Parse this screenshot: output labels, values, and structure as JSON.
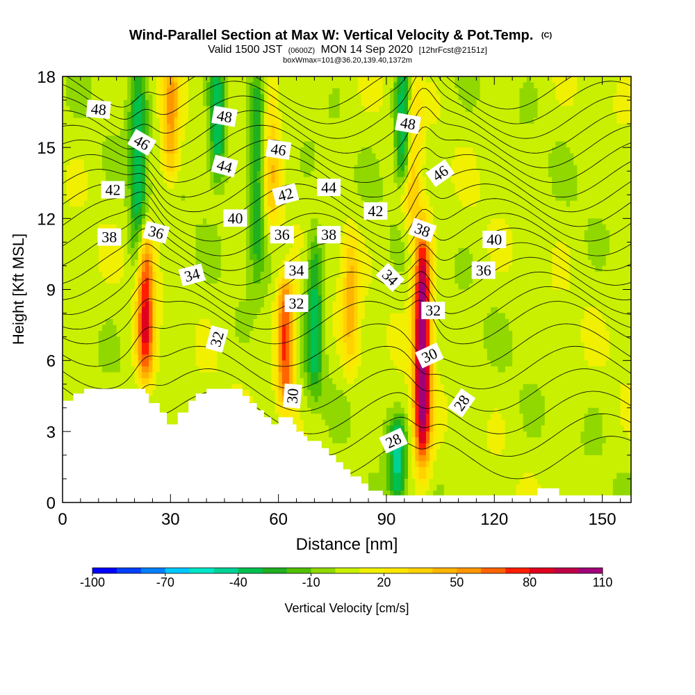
{
  "chart_data": {
    "type": "heatmap",
    "title": "Wind-Parallel Section at Max W: Vertical Velocity & Pot.Temp.",
    "title_badge": "(C)",
    "subtitle_main_a": "Valid 1500 JST",
    "subtitle_small_a": "(0600Z)",
    "subtitle_main_b": "MON 14 Sep 2020",
    "subtitle_small_b": "[12hrFcst@2151z]",
    "subtitle2": "boxWmax=101@36.20,139.40,1372m",
    "xlabel": "Distance [nm]",
    "ylabel": "Height [Kft MSL]",
    "xlim": [
      0,
      158
    ],
    "ylim": [
      0,
      18
    ],
    "xticks": [
      "0",
      "30",
      "60",
      "90",
      "120",
      "150"
    ],
    "yticks": [
      "0",
      "3",
      "6",
      "9",
      "12",
      "15",
      "18"
    ],
    "x_tick_values": [
      0,
      30,
      60,
      90,
      120,
      150
    ],
    "y_tick_values": [
      0,
      3,
      6,
      9,
      12,
      15,
      18
    ],
    "colorbar": {
      "label": "Vertical Velocity [cm/s]",
      "tick_labels": [
        "-100",
        "-70",
        "-40",
        "-10",
        "20",
        "50",
        "80",
        "110"
      ],
      "tick_values": [
        -100,
        -70,
        -40,
        -10,
        20,
        50,
        80,
        110
      ],
      "levels": [
        -100,
        -90,
        -80,
        -70,
        -60,
        -50,
        -40,
        -30,
        -20,
        -10,
        0,
        10,
        20,
        30,
        40,
        50,
        60,
        70,
        80,
        90,
        100,
        110
      ],
      "colors": [
        "#0000ff",
        "#0040ff",
        "#0080ff",
        "#00c8ff",
        "#00e6c8",
        "#00d296",
        "#00c050",
        "#20b020",
        "#50c000",
        "#90d800",
        "#c8f000",
        "#f0f000",
        "#ffe600",
        "#ffd200",
        "#ffb400",
        "#ff9600",
        "#ff6400",
        "#ff1e00",
        "#e0001e",
        "#c00046",
        "#a00078",
        "#7800a0"
      ]
    },
    "updrafts": [
      {
        "x": 23,
        "peak_cm_s": 75,
        "base_kft": 5.5,
        "top_kft": 11
      },
      {
        "x": 30,
        "peak_cm_s": 45,
        "base_kft": 14,
        "top_kft": 18
      },
      {
        "x": 62,
        "peak_cm_s": 70,
        "base_kft": 4.5,
        "top_kft": 9
      },
      {
        "x": 80,
        "peak_cm_s": 35,
        "base_kft": 6,
        "top_kft": 11
      },
      {
        "x": 100,
        "peak_cm_s": 110,
        "base_kft": 2,
        "top_kft": 11
      },
      {
        "x": 97,
        "peak_cm_s": 40,
        "base_kft": 12,
        "top_kft": 18
      },
      {
        "x": 58,
        "peak_cm_s": 30,
        "base_kft": 12,
        "top_kft": 18
      }
    ],
    "downdrafts": [
      {
        "x": 21,
        "min_cm_s": -40,
        "base_kft": 10,
        "top_kft": 18
      },
      {
        "x": 43,
        "min_cm_s": -45,
        "base_kft": 14,
        "top_kft": 18
      },
      {
        "x": 54,
        "min_cm_s": -35,
        "base_kft": 10,
        "top_kft": 18
      },
      {
        "x": 70,
        "min_cm_s": -40,
        "base_kft": 5,
        "top_kft": 11
      },
      {
        "x": 95,
        "min_cm_s": -60,
        "base_kft": 14,
        "top_kft": 18
      },
      {
        "x": 93,
        "min_cm_s": -45,
        "base_kft": 0.5,
        "top_kft": 3
      }
    ],
    "terrain_kft": [
      [
        0,
        4.3
      ],
      [
        3,
        4.3
      ],
      [
        3,
        4.6
      ],
      [
        6,
        4.6
      ],
      [
        6,
        4.8
      ],
      [
        23,
        4.8
      ],
      [
        23,
        4.6
      ],
      [
        24,
        4.6
      ],
      [
        24,
        4.2
      ],
      [
        27,
        4.2
      ],
      [
        27,
        3.8
      ],
      [
        29,
        3.8
      ],
      [
        29,
        3.3
      ],
      [
        32,
        3.3
      ],
      [
        32,
        3.8
      ],
      [
        35,
        3.8
      ],
      [
        35,
        4.3
      ],
      [
        37,
        4.3
      ],
      [
        37,
        4.6
      ],
      [
        40,
        4.6
      ],
      [
        40,
        4.8
      ],
      [
        50,
        4.8
      ],
      [
        50,
        4.5
      ],
      [
        52,
        4.5
      ],
      [
        52,
        4.2
      ],
      [
        54,
        4.2
      ],
      [
        54,
        3.9
      ],
      [
        56,
        3.9
      ],
      [
        56,
        3.6
      ],
      [
        58,
        3.6
      ],
      [
        58,
        3.3
      ],
      [
        60,
        3.3
      ],
      [
        60,
        3.6
      ],
      [
        64,
        3.6
      ],
      [
        64,
        3.3
      ],
      [
        65,
        3.3
      ],
      [
        65,
        3.0
      ],
      [
        67,
        3.0
      ],
      [
        67,
        2.8
      ],
      [
        68,
        2.8
      ],
      [
        68,
        2.6
      ],
      [
        72,
        2.6
      ],
      [
        72,
        2.3
      ],
      [
        74,
        2.3
      ],
      [
        74,
        2.0
      ],
      [
        76,
        2.0
      ],
      [
        76,
        1.7
      ],
      [
        78,
        1.7
      ],
      [
        78,
        1.4
      ],
      [
        80,
        1.4
      ],
      [
        80,
        1.1
      ],
      [
        83,
        1.1
      ],
      [
        83,
        0.8
      ],
      [
        85,
        0.8
      ],
      [
        85,
        0.5
      ],
      [
        89,
        0.5
      ],
      [
        89,
        0.3
      ],
      [
        132,
        0.3
      ],
      [
        132,
        0.6
      ],
      [
        138,
        0.6
      ],
      [
        138,
        0.3
      ],
      [
        158,
        0.3
      ]
    ],
    "theta_contours": {
      "levels": [
        28,
        29,
        30,
        31,
        32,
        33,
        34,
        35,
        36,
        37,
        38,
        39,
        40,
        41,
        42,
        43,
        44,
        45,
        46,
        47,
        48,
        49,
        50
      ],
      "labels": [
        {
          "text": "48",
          "x": 10,
          "y": 16.6,
          "angle": 5
        },
        {
          "text": "46",
          "x": 22,
          "y": 15.2,
          "angle": 30
        },
        {
          "text": "42",
          "x": 14,
          "y": 13.2,
          "angle": 0
        },
        {
          "text": "38",
          "x": 13,
          "y": 11.2,
          "angle": 0
        },
        {
          "text": "36",
          "x": 26,
          "y": 11.4,
          "angle": 15
        },
        {
          "text": "34",
          "x": 36,
          "y": 9.6,
          "angle": -15
        },
        {
          "text": "48",
          "x": 45,
          "y": 16.3,
          "angle": 10
        },
        {
          "text": "44",
          "x": 45,
          "y": 14.2,
          "angle": 15
        },
        {
          "text": "40",
          "x": 48,
          "y": 12.0,
          "angle": 0
        },
        {
          "text": "46",
          "x": 60,
          "y": 14.9,
          "angle": 8
        },
        {
          "text": "42",
          "x": 62,
          "y": 13.0,
          "angle": -15
        },
        {
          "text": "36",
          "x": 61,
          "y": 11.3,
          "angle": 0
        },
        {
          "text": "34",
          "x": 65,
          "y": 9.8,
          "angle": 0
        },
        {
          "text": "32",
          "x": 65,
          "y": 8.4,
          "angle": 0
        },
        {
          "text": "32",
          "x": 43,
          "y": 6.9,
          "angle": -75
        },
        {
          "text": "30",
          "x": 64,
          "y": 4.5,
          "angle": -85
        },
        {
          "text": "44",
          "x": 74,
          "y": 13.3,
          "angle": 0
        },
        {
          "text": "38",
          "x": 74,
          "y": 11.3,
          "angle": 0
        },
        {
          "text": "42",
          "x": 87,
          "y": 12.3,
          "angle": 0
        },
        {
          "text": "48",
          "x": 96,
          "y": 16.0,
          "angle": 10
        },
        {
          "text": "46",
          "x": 105,
          "y": 13.9,
          "angle": -35
        },
        {
          "text": "38",
          "x": 100,
          "y": 11.5,
          "angle": 20
        },
        {
          "text": "34",
          "x": 91,
          "y": 9.5,
          "angle": 45
        },
        {
          "text": "32",
          "x": 103,
          "y": 8.1,
          "angle": 0
        },
        {
          "text": "30",
          "x": 102,
          "y": 6.2,
          "angle": -25
        },
        {
          "text": "28",
          "x": 111,
          "y": 4.2,
          "angle": -55
        },
        {
          "text": "28",
          "x": 92,
          "y": 2.6,
          "angle": -25
        },
        {
          "text": "40",
          "x": 120,
          "y": 11.1,
          "angle": 0
        },
        {
          "text": "36",
          "x": 117,
          "y": 9.8,
          "angle": 0
        }
      ]
    }
  }
}
